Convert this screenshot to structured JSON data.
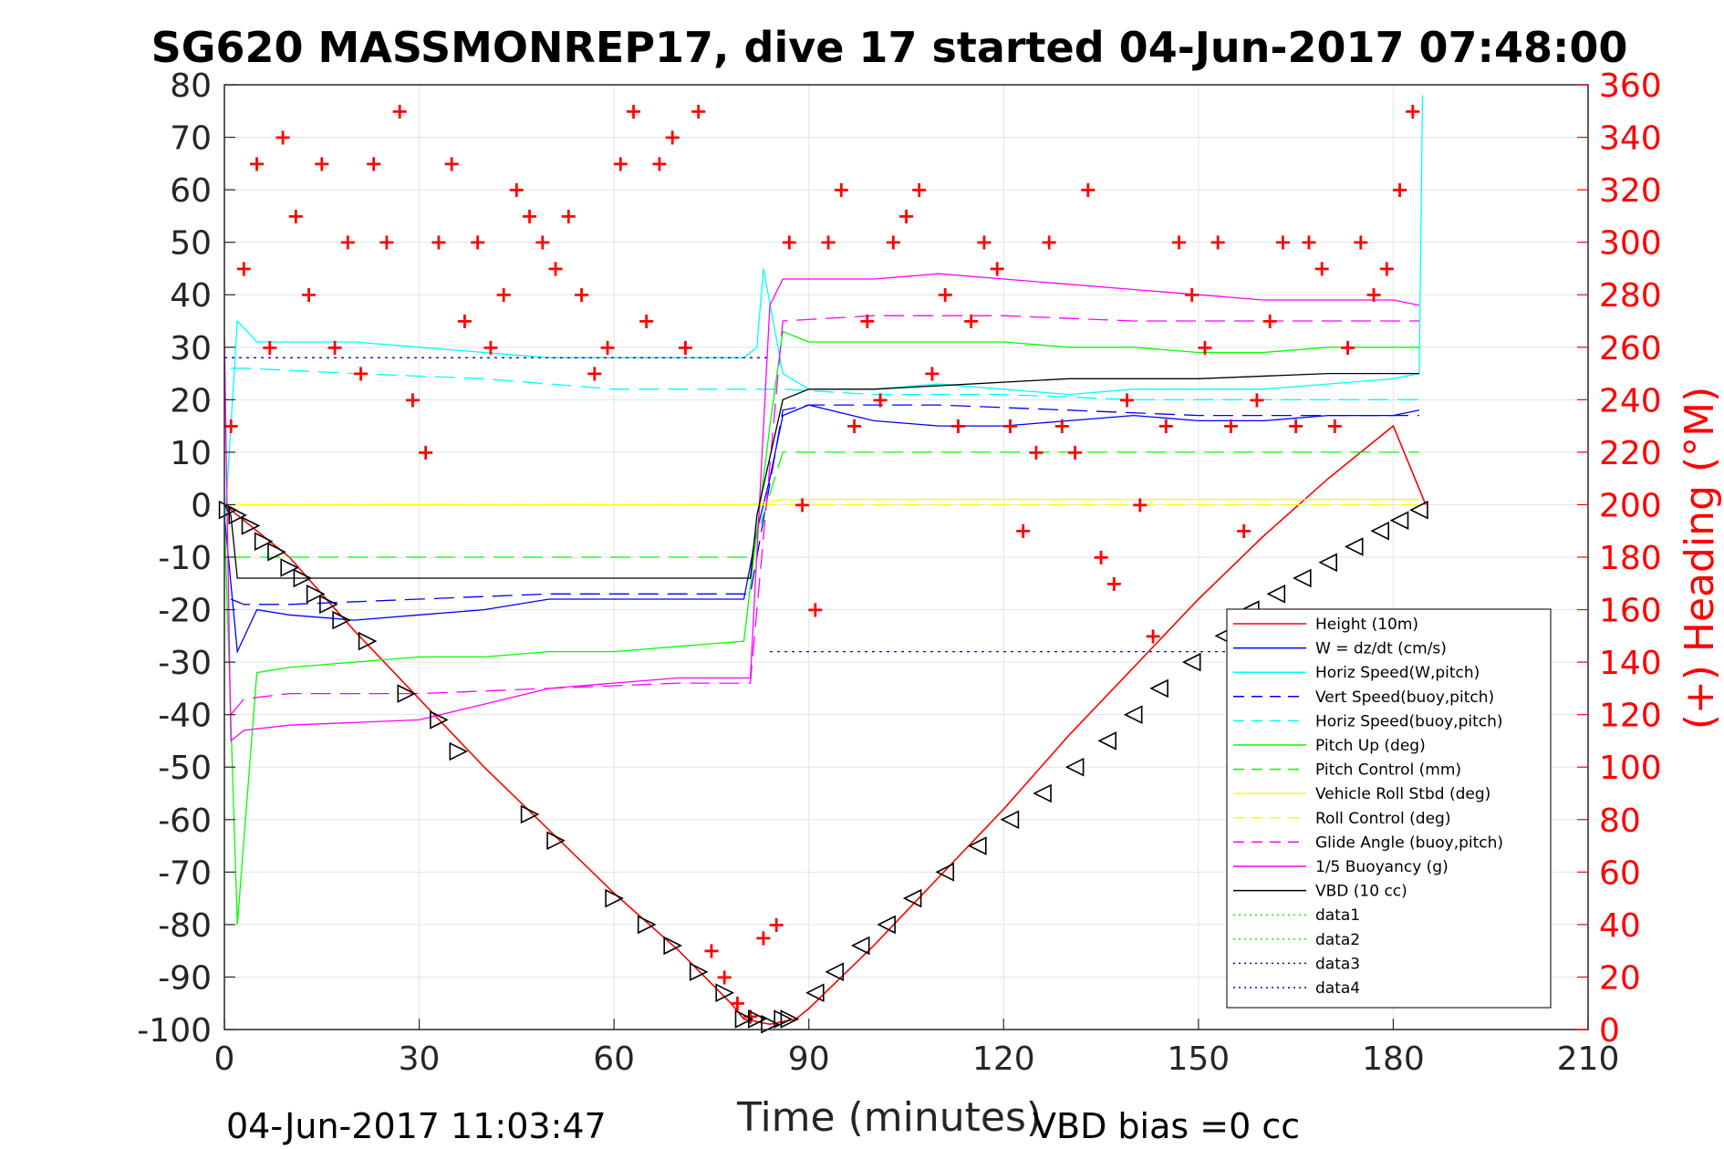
{
  "chart_data": {
    "type": "line",
    "title": "SG620 MASSMONREP17, dive 17 started 04-Jun-2017 07:48:00",
    "xlabel": "Time (minutes)",
    "ylabel": "",
    "ylabel_right": "(+) Heading (°M)",
    "xlim": [
      0,
      210
    ],
    "ylim": [
      -100,
      80
    ],
    "ylim_right": [
      0,
      360
    ],
    "x_ticks": [
      "0",
      "30",
      "60",
      "90",
      "120",
      "150",
      "180",
      "210"
    ],
    "y_ticks_left": [
      "80",
      "70",
      "60",
      "50",
      "40",
      "30",
      "20",
      "10",
      "0",
      "-10",
      "-20",
      "-30",
      "-40",
      "-50",
      "-60",
      "-70",
      "-80",
      "-90",
      "-100"
    ],
    "y_ticks_right": [
      "360",
      "340",
      "320",
      "300",
      "280",
      "260",
      "240",
      "220",
      "200",
      "180",
      "160",
      "140",
      "120",
      "100",
      "80",
      "60",
      "40",
      "20",
      "0"
    ],
    "grid": true,
    "legend_position": "bottom-right",
    "footer_left": "04-Jun-2017 11:03:47",
    "footer_right": "VBD bias =0 cc",
    "series": [
      {
        "name": "Height (10m)",
        "color": "#ff0000",
        "style": "solid",
        "x": [
          0,
          10,
          20,
          30,
          40,
          50,
          60,
          70,
          78,
          80,
          84,
          88,
          90,
          100,
          110,
          120,
          130,
          140,
          150,
          160,
          170,
          180,
          185
        ],
        "y": [
          0,
          -10,
          -24,
          -37,
          -50,
          -62,
          -74,
          -85,
          -95,
          -98,
          -99,
          -98,
          -96,
          -84,
          -71,
          -58,
          -44,
          -31,
          -18,
          -6,
          5,
          15,
          0
        ]
      },
      {
        "name": "W = dz/dt (cm/s)",
        "color": "#0000ff",
        "style": "solid",
        "x": [
          0,
          2,
          5,
          10,
          20,
          30,
          40,
          50,
          60,
          70,
          80,
          82,
          84,
          86,
          90,
          100,
          110,
          120,
          130,
          140,
          150,
          160,
          170,
          180,
          184
        ],
        "y": [
          -2,
          -28,
          -20,
          -21,
          -22,
          -21,
          -20,
          -18,
          -18,
          -18,
          -18,
          -5,
          5,
          17,
          19,
          16,
          15,
          15,
          16,
          17,
          16,
          16,
          17,
          17,
          18
        ]
      },
      {
        "name": "Horiz Speed(W,pitch)",
        "color": "#00ffff",
        "style": "solid",
        "x": [
          0,
          2,
          5,
          10,
          20,
          30,
          40,
          50,
          60,
          70,
          80,
          82,
          83,
          86,
          90,
          100,
          110,
          120,
          130,
          140,
          150,
          160,
          170,
          180,
          184,
          184.5
        ],
        "y": [
          -5,
          35,
          31,
          31,
          31,
          30,
          29,
          28,
          28,
          28,
          28,
          30,
          45,
          25,
          22,
          22,
          23,
          22,
          21,
          22,
          22,
          22,
          23,
          24,
          25,
          78
        ]
      },
      {
        "name": "Vert Speed(buoy,pitch)",
        "color": "#0000ff",
        "style": "dashed",
        "x": [
          1,
          3,
          10,
          30,
          50,
          70,
          81,
          86,
          90,
          110,
          130,
          150,
          170,
          184
        ],
        "y": [
          -18,
          -19,
          -19,
          -18,
          -17,
          -17,
          -17,
          18,
          19,
          19,
          18,
          17,
          17,
          17
        ]
      },
      {
        "name": "Horiz Speed(buoy,pitch)",
        "color": "#00ffff",
        "style": "dashed",
        "x": [
          1,
          3,
          20,
          40,
          60,
          81,
          86,
          100,
          120,
          140,
          160,
          184
        ],
        "y": [
          26,
          26,
          25,
          24,
          22,
          22,
          22,
          21,
          21,
          20,
          20,
          20
        ]
      },
      {
        "name": "Pitch Up (deg)",
        "color": "#00ff00",
        "style": "solid",
        "x": [
          0,
          2,
          5,
          10,
          20,
          30,
          40,
          50,
          60,
          70,
          80,
          82,
          84,
          86,
          90,
          100,
          110,
          120,
          130,
          140,
          150,
          160,
          170,
          180,
          184
        ],
        "y": [
          -2,
          -80,
          -32,
          -31,
          -30,
          -29,
          -29,
          -28,
          -28,
          -27,
          -26,
          -5,
          15,
          33,
          31,
          31,
          31,
          31,
          30,
          30,
          29,
          29,
          30,
          30,
          30
        ]
      },
      {
        "name": "Pitch Control (mm)",
        "color": "#00ff00",
        "style": "dashed",
        "x": [
          1,
          3,
          20,
          40,
          60,
          81,
          86,
          100,
          120,
          140,
          160,
          184
        ],
        "y": [
          -10,
          -10,
          -10,
          -10,
          -10,
          -10,
          10,
          10,
          10,
          10,
          10,
          10
        ]
      },
      {
        "name": "Vehicle Roll Stbd (deg)",
        "color": "#ffff00",
        "style": "solid",
        "x": [
          1,
          3,
          20,
          40,
          60,
          81,
          86,
          100,
          120,
          140,
          160,
          184
        ],
        "y": [
          0,
          0,
          0,
          0,
          0,
          0,
          1,
          1,
          1,
          1,
          1,
          1
        ]
      },
      {
        "name": "Roll Control (deg)",
        "color": "#ffff00",
        "style": "dashed",
        "x": [
          1,
          3,
          20,
          40,
          60,
          81,
          86,
          100,
          120,
          140,
          160,
          184
        ],
        "y": [
          0,
          0,
          0,
          0,
          0,
          0,
          0,
          0,
          0,
          0,
          0,
          0
        ]
      },
      {
        "name": "Glide Angle (buoy,pitch)",
        "color": "#ff00ff",
        "style": "dashed",
        "x": [
          1,
          3,
          10,
          30,
          50,
          70,
          81,
          86,
          100,
          120,
          140,
          160,
          184
        ],
        "y": [
          -40,
          -37,
          -36,
          -36,
          -35,
          -34,
          -34,
          35,
          36,
          36,
          35,
          35,
          35
        ]
      },
      {
        "name": "1/5 Buoyancy (g)",
        "color": "#ff00ff",
        "style": "solid",
        "x": [
          0,
          1,
          3,
          10,
          30,
          40,
          50,
          60,
          70,
          81,
          84,
          86,
          90,
          100,
          110,
          120,
          130,
          140,
          150,
          160,
          170,
          180,
          184
        ],
        "y": [
          32,
          -45,
          -43,
          -42,
          -41,
          -38,
          -35,
          -34,
          -33,
          -33,
          38,
          43,
          43,
          43,
          44,
          43,
          42,
          41,
          40,
          39,
          39,
          39,
          38
        ]
      },
      {
        "name": "VBD (10 cc)",
        "color": "#000000",
        "style": "solid",
        "x": [
          0,
          1,
          2,
          5,
          20,
          40,
          60,
          81,
          82,
          86,
          90,
          100,
          130,
          150,
          170,
          184
        ],
        "y": [
          0,
          -2,
          -14,
          -14,
          -14,
          -14,
          -14,
          -14,
          -2,
          20,
          22,
          22,
          24,
          24,
          25,
          25
        ]
      },
      {
        "name": "data1",
        "color": "#00ff00",
        "style": "dotted",
        "x": [],
        "y": []
      },
      {
        "name": "data2",
        "color": "#00ff00",
        "style": "dotted",
        "x": [],
        "y": []
      },
      {
        "name": "data3",
        "color": "#0000ff",
        "style": "dotted",
        "x": [
          0,
          84
        ],
        "y": [
          28,
          28
        ]
      },
      {
        "name": "data4",
        "color": "#0000ff",
        "style": "dotted",
        "x": [
          84,
          184
        ],
        "y": [
          -28,
          -28
        ]
      }
    ],
    "heading": {
      "axis": "right",
      "color": "#ff0000",
      "marker": "+",
      "x": [
        1,
        3,
        5,
        7,
        9,
        11,
        13,
        15,
        17,
        19,
        21,
        23,
        25,
        27,
        29,
        31,
        33,
        35,
        37,
        39,
        41,
        43,
        45,
        47,
        49,
        51,
        53,
        55,
        57,
        59,
        61,
        63,
        65,
        67,
        69,
        71,
        73,
        75,
        77,
        79,
        81,
        83,
        85,
        87,
        89,
        91,
        93,
        95,
        97,
        99,
        101,
        103,
        105,
        107,
        109,
        111,
        113,
        115,
        117,
        119,
        121,
        123,
        125,
        127,
        129,
        131,
        133,
        135,
        137,
        139,
        141,
        143,
        145,
        147,
        149,
        151,
        153,
        155,
        157,
        159,
        161,
        163,
        165,
        167,
        169,
        171,
        173,
        175,
        177,
        179,
        181,
        183
      ],
      "y": [
        230,
        290,
        330,
        260,
        340,
        310,
        280,
        330,
        260,
        300,
        250,
        330,
        300,
        350,
        240,
        220,
        300,
        330,
        270,
        300,
        260,
        280,
        320,
        310,
        300,
        290,
        310,
        280,
        250,
        260,
        330,
        350,
        270,
        330,
        340,
        260,
        350,
        30,
        20,
        10,
        5,
        35,
        40,
        300,
        200,
        160,
        300,
        320,
        230,
        270,
        240,
        300,
        310,
        320,
        250,
        280,
        230,
        270,
        300,
        290,
        230,
        190,
        220,
        300,
        230,
        220,
        320,
        180,
        170,
        240,
        200,
        150,
        230,
        300,
        280,
        260,
        300,
        230,
        190,
        240,
        270,
        300,
        230,
        300,
        290,
        230,
        260,
        300,
        280,
        290,
        320,
        350
      ]
    },
    "descent_triangles": {
      "x": [
        0.5,
        2,
        4,
        6,
        8,
        10,
        12,
        14,
        16,
        18,
        22,
        28,
        33,
        36,
        47,
        51,
        60,
        65,
        69,
        73,
        77,
        80,
        82,
        84,
        86,
        87
      ],
      "y": [
        -1,
        -2,
        -4,
        -7,
        -9,
        -12,
        -14,
        -17,
        -19,
        -22,
        -26,
        -36,
        -41,
        -47,
        -59,
        -64,
        -75,
        -80,
        -84,
        -89,
        -93,
        -98,
        -98,
        -99,
        -98,
        -98
      ]
    },
    "ascent_triangles": {
      "x": [
        91,
        94,
        98,
        102,
        106,
        111,
        116,
        121,
        126,
        131,
        136,
        140,
        144,
        149,
        154,
        158,
        162,
        166,
        170,
        174,
        178,
        181,
        184
      ],
      "y": [
        -93,
        -89,
        -84,
        -80,
        -75,
        -70,
        -65,
        -60,
        -55,
        -50,
        -45,
        -40,
        -35,
        -30,
        -25,
        -20,
        -17,
        -14,
        -11,
        -8,
        -5,
        -3,
        -1
      ]
    }
  }
}
